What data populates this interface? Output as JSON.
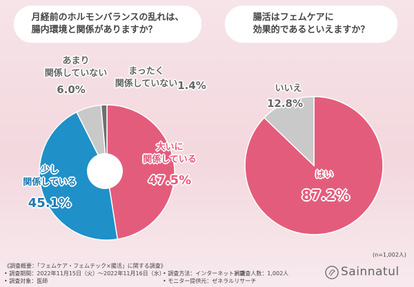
{
  "chart_data": [
    {
      "type": "pie",
      "title": "月経前のホルモンバランスの乱れは、\n腸内環境と関係がありますか？",
      "categories": [
        "大いに\n関係している",
        "少し\n関係している",
        "あまり\n関係していない",
        "まったく\n関係していない"
      ],
      "values": [
        47.5,
        45.1,
        6.0,
        1.4
      ],
      "value_labels": [
        "47.5%",
        "45.1%",
        "6.0%",
        "1.4%"
      ],
      "colors": [
        "#e45c7c",
        "#1f90c8",
        "#c9c9c9",
        "#6f6f6f"
      ]
    },
    {
      "type": "pie",
      "title": "腸活はフェムケアに\n効果的であるといえますか？",
      "categories": [
        "はい",
        "いいえ"
      ],
      "values": [
        87.2,
        12.8
      ],
      "value_labels": [
        "87.2%",
        "12.8%"
      ],
      "colors": [
        "#e45c7c",
        "#c9c9c9"
      ]
    }
  ],
  "note": "(n=1,002人)",
  "survey": {
    "heading": "《調査概要：「フェムケア・フェムテック×腸活」に関する調査》",
    "items": [
      "調査期間：2022年11月15日（火）〜2022年11月16日（水）",
      "調査方法：インターネット調査",
      "調査人数：1,002人",
      "調査対象：医師",
      "モニター提供元：ゼネラルリサーチ"
    ]
  },
  "brand": "Sainnatul"
}
